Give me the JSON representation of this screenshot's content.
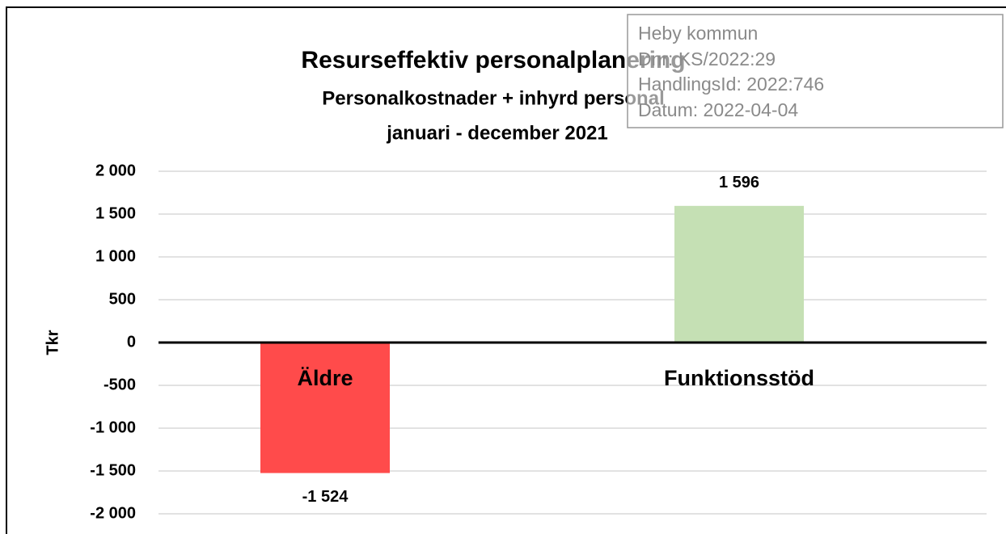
{
  "chart_data": {
    "type": "bar",
    "title": "Resurseffektiv personalplanering",
    "subtitle": [
      "Personalkostnader + inhyrd personal",
      "januari - december 2021"
    ],
    "y_label": "Tkr",
    "categories": [
      "Äldre",
      "Funktionsstöd"
    ],
    "values": [
      -1524,
      1596
    ],
    "value_labels": [
      "-1 524",
      "1 596"
    ],
    "colors": [
      "#ff4b4b",
      "#c5e0b4"
    ],
    "ylim": [
      -2000,
      2000
    ],
    "yticks": [
      {
        "value": -2000,
        "label": "-2 000"
      },
      {
        "value": -1500,
        "label": "-1 500"
      },
      {
        "value": -1000,
        "label": "-1 000"
      },
      -500,
      0,
      500,
      {
        "value": 1000,
        "label": "1 000"
      },
      {
        "value": 1500,
        "label": "1 500"
      },
      {
        "value": 2000,
        "label": "2 000"
      }
    ],
    "grid": true
  },
  "stamp": {
    "lines": [
      "Heby kommun",
      "Dnr: KS/2022:29",
      "HandlingsId: 2022:746",
      "Datum: 2022-04-04"
    ]
  }
}
